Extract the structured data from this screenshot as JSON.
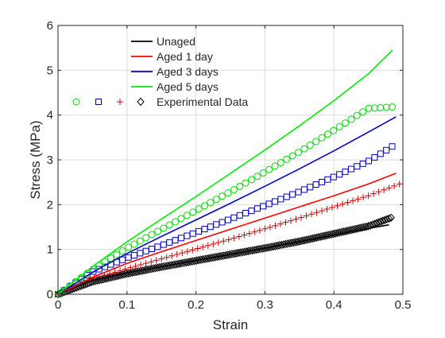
{
  "chart_data": {
    "type": "line",
    "title": "",
    "xlabel": "Strain",
    "ylabel": "Stress (MPa)",
    "xlim": [
      0,
      0.5
    ],
    "ylim": [
      0,
      6
    ],
    "xticks": [
      0,
      0.1,
      0.2,
      0.3,
      0.4,
      0.5
    ],
    "yticks": [
      0,
      1,
      2,
      3,
      4,
      5,
      6
    ],
    "xtick_labels": [
      "0",
      "0.1",
      "0.2",
      "0.3",
      "0.4",
      "0.5"
    ],
    "ytick_labels": [
      "0",
      "1",
      "2",
      "3",
      "4",
      "5",
      "6"
    ],
    "grid": true,
    "legend_position": "top-left",
    "legend": [
      "Unaged",
      "Aged 1 day",
      "Aged 3 days",
      "Aged 5 days",
      "Experimental Data"
    ],
    "series": [
      {
        "name": "Unaged",
        "kind": "line",
        "color": "#000000",
        "x": [
          0,
          0.05,
          0.1,
          0.15,
          0.2,
          0.25,
          0.3,
          0.35,
          0.4,
          0.45,
          0.48
        ],
        "y": [
          0,
          0.31,
          0.48,
          0.62,
          0.76,
          0.89,
          1.03,
          1.17,
          1.32,
          1.47,
          1.55
        ]
      },
      {
        "name": "Aged 1 day",
        "kind": "line",
        "color": "#ff0000",
        "x": [
          0,
          0.05,
          0.1,
          0.15,
          0.2,
          0.25,
          0.3,
          0.35,
          0.4,
          0.45,
          0.49
        ],
        "y": [
          0,
          0.38,
          0.69,
          0.95,
          1.2,
          1.45,
          1.7,
          1.95,
          2.2,
          2.46,
          2.7
        ]
      },
      {
        "name": "Aged 3 days",
        "kind": "line",
        "color": "#0000cc",
        "x": [
          0,
          0.05,
          0.1,
          0.15,
          0.2,
          0.25,
          0.3,
          0.35,
          0.4,
          0.45,
          0.49
        ],
        "y": [
          0,
          0.49,
          0.91,
          1.29,
          1.66,
          2.03,
          2.41,
          2.8,
          3.2,
          3.62,
          3.96
        ]
      },
      {
        "name": "Aged 5 days",
        "kind": "line",
        "color": "#00ee00",
        "x": [
          0,
          0.05,
          0.1,
          0.15,
          0.2,
          0.25,
          0.3,
          0.35,
          0.4,
          0.45,
          0.485
        ],
        "y": [
          0,
          0.62,
          1.17,
          1.68,
          2.18,
          2.7,
          3.22,
          3.76,
          4.32,
          4.92,
          5.45
        ]
      }
    ],
    "experimental_data": [
      {
        "marker": "diamond",
        "color": "#000000",
        "x": [
          0,
          0.05,
          0.1,
          0.15,
          0.2,
          0.25,
          0.3,
          0.35,
          0.4,
          0.45,
          0.485
        ],
        "y": [
          0,
          0.28,
          0.46,
          0.61,
          0.75,
          0.89,
          1.03,
          1.18,
          1.35,
          1.52,
          1.72
        ]
      },
      {
        "marker": "plus",
        "color": "#cc0000",
        "x": [
          0,
          0.05,
          0.1,
          0.15,
          0.2,
          0.25,
          0.3,
          0.35,
          0.4,
          0.45,
          0.495
        ],
        "y": [
          0,
          0.35,
          0.57,
          0.79,
          1.01,
          1.23,
          1.46,
          1.7,
          1.95,
          2.2,
          2.46
        ]
      },
      {
        "marker": "square",
        "color": "#0000cc",
        "x": [
          0,
          0.05,
          0.1,
          0.15,
          0.2,
          0.25,
          0.3,
          0.35,
          0.4,
          0.45,
          0.49
        ],
        "y": [
          0,
          0.5,
          0.81,
          1.09,
          1.38,
          1.68,
          1.98,
          2.29,
          2.62,
          2.97,
          3.35
        ]
      },
      {
        "marker": "circle",
        "color": "#00dd00",
        "x": [
          0,
          0.05,
          0.1,
          0.15,
          0.2,
          0.25,
          0.3,
          0.35,
          0.4,
          0.45,
          0.485
        ],
        "y": [
          0,
          0.55,
          1.03,
          1.45,
          1.87,
          2.29,
          2.73,
          3.18,
          3.66,
          4.15,
          4.18
        ]
      }
    ]
  }
}
